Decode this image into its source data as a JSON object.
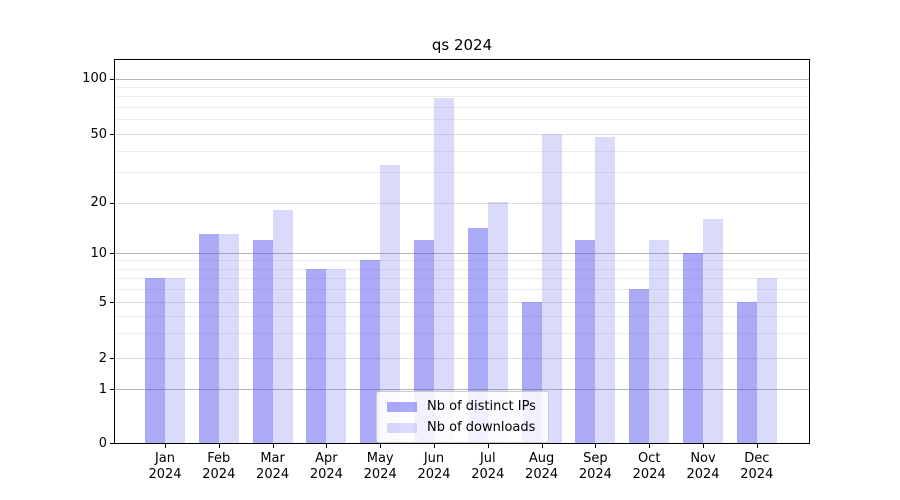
{
  "chart_data": {
    "type": "bar",
    "title": "qs 2024",
    "categories": [
      "Jan 2024",
      "Feb 2024",
      "Mar 2024",
      "Apr 2024",
      "May 2024",
      "Jun 2024",
      "Jul 2024",
      "Aug 2024",
      "Sep 2024",
      "Oct 2024",
      "Nov 2024",
      "Dec 2024"
    ],
    "series": [
      {
        "name": "Nb of distinct IPs",
        "color": "rgba(85,85,238,0.5)",
        "values": [
          7,
          13,
          12,
          8,
          9,
          12,
          14,
          5,
          12,
          6,
          10,
          5
        ]
      },
      {
        "name": "Nb of downloads",
        "color": "rgba(85,85,238,0.22)",
        "values": [
          7,
          13,
          18,
          8,
          33,
          78,
          20,
          50,
          48,
          12,
          16,
          7
        ]
      }
    ],
    "xlabel": "",
    "ylabel": "",
    "yscale": "symlog",
    "yticks": [
      0,
      1,
      2,
      5,
      10,
      20,
      50,
      100
    ],
    "ytick_labels": [
      "0",
      "1",
      "2",
      "5",
      "10",
      "20",
      "50",
      "100"
    ],
    "ylim": [
      0,
      129
    ],
    "grid": true,
    "legend_position": "lower center"
  },
  "colors": {
    "bar_dark": "rgba(85,85,238,0.5)",
    "bar_light": "rgba(85,85,238,0.22)",
    "grid_major": "#b5b5b5",
    "grid_minor": "#ececec",
    "spine": "#000000",
    "background": "#ffffff"
  }
}
